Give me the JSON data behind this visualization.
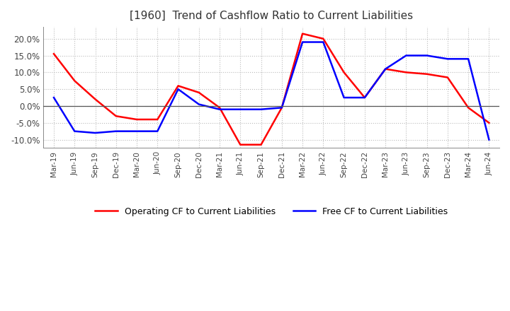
{
  "title": "[1960]  Trend of Cashflow Ratio to Current Liabilities",
  "title_fontsize": 11,
  "x_labels": [
    "Mar-19",
    "Jun-19",
    "Sep-19",
    "Dec-19",
    "Mar-20",
    "Jun-20",
    "Sep-20",
    "Dec-20",
    "Mar-21",
    "Jun-21",
    "Sep-21",
    "Dec-21",
    "Mar-22",
    "Jun-22",
    "Sep-22",
    "Dec-22",
    "Mar-23",
    "Jun-23",
    "Sep-23",
    "Dec-23",
    "Mar-24",
    "Jun-24"
  ],
  "operating_cf": [
    0.155,
    0.075,
    0.02,
    -0.03,
    -0.04,
    -0.04,
    0.06,
    0.04,
    -0.005,
    -0.115,
    -0.115,
    -0.005,
    0.215,
    0.2,
    0.1,
    0.025,
    0.11,
    0.1,
    0.095,
    0.085,
    -0.005,
    -0.05
  ],
  "free_cf": [
    0.025,
    -0.075,
    -0.08,
    -0.075,
    -0.075,
    -0.075,
    0.05,
    0.005,
    -0.01,
    -0.01,
    -0.01,
    -0.005,
    0.19,
    0.19,
    0.025,
    0.025,
    0.11,
    0.15,
    0.15,
    0.14,
    0.14,
    -0.1
  ],
  "operating_color": "#ff0000",
  "free_color": "#0000ff",
  "ylim": [
    -0.125,
    0.235
  ],
  "yticks": [
    -0.1,
    -0.05,
    0.0,
    0.05,
    0.1,
    0.15,
    0.2
  ],
  "grid_color": "#bbbbbb",
  "background_color": "#ffffff",
  "legend_op": "Operating CF to Current Liabilities",
  "legend_free": "Free CF to Current Liabilities"
}
